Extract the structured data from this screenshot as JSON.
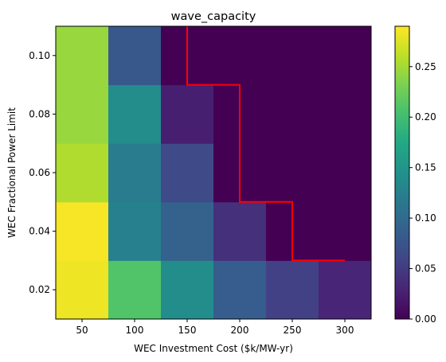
{
  "chart_data": {
    "type": "heatmap",
    "title": "wave_capacity",
    "xlabel": "WEC Investment Cost ($k/MW-yr)",
    "ylabel": "WEC Fractional Power Limit",
    "x_categories": [
      50,
      100,
      150,
      200,
      250,
      300
    ],
    "x_tick_values": [
      50,
      100,
      150,
      200,
      250,
      300
    ],
    "x_tick_labels": [
      "50",
      "100",
      "150",
      "200",
      "250",
      "300"
    ],
    "y_categories": [
      0.02,
      0.04,
      0.06,
      0.08,
      0.1
    ],
    "y_tick_values": [
      0.02,
      0.04,
      0.06,
      0.08,
      0.1
    ],
    "y_tick_labels": [
      "0.02",
      "0.04",
      "0.06",
      "0.08",
      "0.10"
    ],
    "xlim": [
      25,
      325
    ],
    "ylim": [
      0.01,
      0.11
    ],
    "values": [
      [
        0.283,
        0.21,
        0.14,
        0.085,
        0.055,
        0.03
      ],
      [
        0.287,
        0.125,
        0.09,
        0.04,
        0.0,
        0.0
      ],
      [
        0.255,
        0.12,
        0.065,
        0.0,
        0.0,
        0.0
      ],
      [
        0.245,
        0.14,
        0.025,
        0.0,
        0.0,
        0.0
      ],
      [
        0.245,
        0.08,
        0.0,
        0.0,
        0.0,
        0.0
      ]
    ],
    "colormap": "viridis",
    "colorbar": {
      "min": 0.0,
      "max": 0.29,
      "tick_values": [
        0.0,
        0.05,
        0.1,
        0.15,
        0.2,
        0.25
      ],
      "tick_labels": [
        "0.00",
        "0.05",
        "0.10",
        "0.15",
        "0.20",
        "0.25"
      ]
    },
    "boundary_color": "#ff0000",
    "boundary_path": [
      [
        150,
        0.11
      ],
      [
        150,
        0.09
      ],
      [
        200,
        0.09
      ],
      [
        200,
        0.05
      ],
      [
        250,
        0.05
      ],
      [
        250,
        0.03
      ],
      [
        300,
        0.03
      ]
    ],
    "grid": false
  }
}
